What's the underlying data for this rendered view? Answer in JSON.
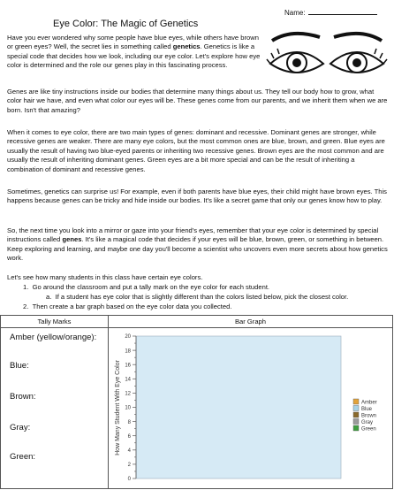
{
  "header": {
    "name_label": "Name:",
    "title": "Eye Color: The Magic of Genetics"
  },
  "paragraphs": [
    [
      "Have you ever wondered why some people have blue eyes, while others have brown or green eyes? Well, the secret lies in something called ",
      "genetics",
      ". Genetics is like a special code that decides how we look, including our eye color. Let's explore how eye color is determined and the role our genes play in this fascinating process."
    ],
    [
      "Genes are like tiny instructions inside our bodies that determine many things about us. They tell our body how to grow, what color hair we have, and even what color our eyes will be. These genes come from our parents, and we inherit them when we are born. Isn't that amazing?"
    ],
    [
      "When it comes to eye color, there are two main types of genes: dominant and recessive. Dominant genes are stronger, while recessive genes are weaker. There are many eye colors, but the most common ones are blue, brown, and green. Blue eyes are usually the result of having two blue-eyed parents or inheriting two recessive genes. Brown eyes are the most common and are usually the result of inheriting dominant genes. Green eyes are a bit more special and can be the result of inheriting a combination of dominant and recessive genes."
    ],
    [
      "Sometimes, genetics can surprise us! For example, even if both parents have blue eyes, their child might have brown eyes. This happens because genes can be tricky and hide inside our bodies. It's like a secret game that only our genes know how to play."
    ],
    [
      "So, the next time you look into a mirror or gaze into your friend's eyes, remember that your eye color is determined by special instructions called ",
      "genes",
      ". It's like a magical code that decides if your eyes will be blue, brown, green, or something in between.  Keep exploring and learning, and maybe one day you'll become a scientist who uncovers even more secrets about how genetics work."
    ]
  ],
  "instructions": {
    "intro": "Let's see how many students in this class have certain eye colors.",
    "steps": [
      {
        "number": "1.",
        "text": "Go around the classroom and put a tally mark on the eye color for each student.",
        "sub": {
          "letter": "a.",
          "text": "If a student has eye color that is slightly different than the colors listed below, pick the closest color."
        }
      },
      {
        "number": "2.",
        "text": "Then create a bar graph based on the eye color data you collected."
      }
    ]
  },
  "table": {
    "headers": [
      "Tally Marks",
      "Bar Graph"
    ],
    "rows": [
      "Amber (yellow/orange):",
      "Blue:",
      "Brown:",
      "Gray:",
      "Green:"
    ]
  },
  "bar_graph": {
    "y_axis_label": "How Many Student With Eye Color",
    "yticks": [
      0,
      2,
      4,
      6,
      8,
      10,
      12,
      14,
      16,
      18,
      20
    ],
    "legend": [
      {
        "label": "Amber",
        "color": "#e3a33a"
      },
      {
        "label": "Blue",
        "color": "#a9d3e6"
      },
      {
        "label": "Brown",
        "color": "#8a6a2c"
      },
      {
        "label": "Gray",
        "color": "#9b9b9b"
      },
      {
        "label": "Green",
        "color": "#3f9e3f"
      }
    ]
  }
}
